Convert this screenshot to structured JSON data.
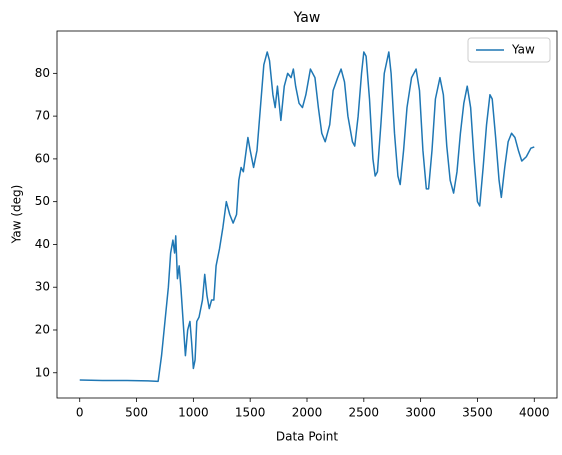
{
  "chart_data": {
    "type": "line",
    "title": "Yaw",
    "xlabel": "Data Point",
    "ylabel": "Yaw (deg)",
    "legend": "upper right",
    "x": [
      0,
      200,
      400,
      600,
      690,
      720,
      750,
      780,
      800,
      820,
      835,
      845,
      860,
      875,
      890,
      910,
      930,
      950,
      970,
      985,
      1000,
      1015,
      1030,
      1050,
      1080,
      1100,
      1120,
      1140,
      1160,
      1180,
      1200,
      1230,
      1260,
      1290,
      1320,
      1350,
      1380,
      1400,
      1420,
      1440,
      1480,
      1500,
      1530,
      1560,
      1590,
      1620,
      1650,
      1670,
      1700,
      1720,
      1740,
      1770,
      1800,
      1830,
      1860,
      1880,
      1900,
      1930,
      1960,
      1990,
      2030,
      2070,
      2100,
      2130,
      2160,
      2200,
      2230,
      2270,
      2300,
      2330,
      2360,
      2400,
      2420,
      2450,
      2480,
      2500,
      2520,
      2550,
      2580,
      2600,
      2620,
      2650,
      2680,
      2720,
      2740,
      2770,
      2800,
      2820,
      2850,
      2880,
      2920,
      2960,
      2990,
      3020,
      3050,
      3070,
      3100,
      3130,
      3170,
      3200,
      3230,
      3260,
      3290,
      3320,
      3350,
      3380,
      3410,
      3440,
      3470,
      3500,
      3520,
      3550,
      3580,
      3610,
      3630,
      3660,
      3690,
      3710,
      3740,
      3770,
      3800,
      3830,
      3860,
      3890,
      3930,
      3970,
      4000
    ],
    "series": [
      {
        "name": "Yaw",
        "color": "#1f77b4",
        "values": [
          8.3,
          8.2,
          8.2,
          8.1,
          8.0,
          14,
          22,
          30,
          38,
          41,
          38,
          42,
          32,
          35,
          30,
          22,
          14,
          20,
          22,
          17,
          11,
          13,
          22,
          23,
          27,
          33,
          28,
          25,
          27,
          27,
          35,
          39,
          44,
          50,
          47,
          45,
          47,
          55,
          58,
          57,
          65,
          62,
          58,
          62,
          72,
          82,
          85,
          83,
          75,
          72,
          77,
          69,
          77,
          80,
          79,
          81,
          77,
          73,
          72,
          75,
          81,
          79,
          72,
          66,
          64,
          68,
          76,
          79,
          81,
          78,
          70,
          64,
          63,
          70,
          80,
          85,
          84,
          74,
          60,
          56,
          57,
          68,
          80,
          85,
          80,
          66,
          56,
          54,
          62,
          72,
          79,
          81,
          76,
          62,
          53,
          53,
          62,
          74,
          79,
          75,
          63,
          55,
          52,
          57,
          66,
          73,
          77,
          72,
          60,
          50,
          49,
          58,
          68,
          75,
          74,
          65,
          55,
          51,
          58,
          64,
          66,
          65,
          62,
          59.5,
          60.5,
          62.5,
          62.8
        ]
      }
    ],
    "xlim": [
      -200,
      4200
    ],
    "xticks": [
      0,
      500,
      1000,
      1500,
      2000,
      2500,
      3000,
      3500,
      4000
    ],
    "ylim": [
      4.1,
      89.9
    ],
    "yticks": [
      10,
      20,
      30,
      40,
      50,
      60,
      70,
      80
    ]
  }
}
